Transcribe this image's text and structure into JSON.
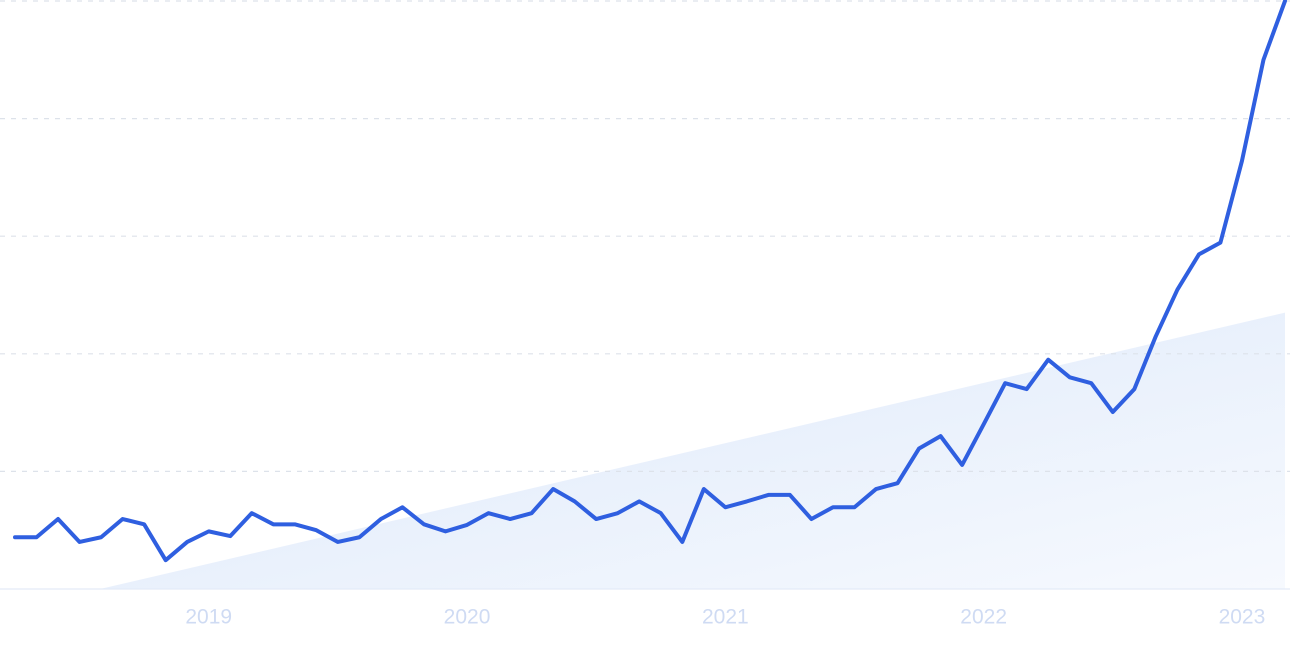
{
  "chart_data": {
    "type": "line",
    "categories": [
      null,
      null,
      null,
      null,
      null,
      null,
      null,
      null,
      null,
      "2019",
      null,
      null,
      null,
      null,
      null,
      null,
      null,
      null,
      null,
      null,
      null,
      "2020",
      null,
      null,
      null,
      null,
      null,
      null,
      null,
      null,
      null,
      null,
      null,
      "2021",
      null,
      null,
      null,
      null,
      null,
      null,
      null,
      null,
      null,
      null,
      null,
      "2022",
      null,
      null,
      null,
      null,
      null,
      null,
      null,
      null,
      null,
      null,
      null,
      "2023",
      null,
      null
    ],
    "series": [
      {
        "color": "#2f5fe0",
        "values": [
          8.8,
          8.8,
          11.9,
          8.0,
          8.8,
          11.9,
          11.0,
          4.9,
          8.0,
          9.8,
          9.0,
          12.9,
          11.0,
          11.0,
          10.0,
          8.0,
          8.8,
          11.9,
          13.9,
          11.0,
          9.8,
          10.9,
          12.9,
          11.9,
          12.9,
          17.0,
          14.9,
          11.9,
          12.9,
          14.9,
          12.9,
          8.0,
          17.0,
          13.9,
          14.9,
          16.0,
          16.0,
          11.9,
          13.9,
          13.9,
          17.0,
          18.0,
          23.9,
          26.0,
          21.1,
          28.0,
          35.0,
          34.0,
          39.0,
          36.0,
          35.0,
          30.1,
          34.0,
          43.0,
          50.9,
          56.9,
          58.9,
          72.8,
          90.0,
          100
        ]
      }
    ],
    "trend": {
      "color": "#e3edfb",
      "x": [
        3.95,
        59
      ],
      "values": [
        0,
        47
      ]
    },
    "ylim": [
      0,
      100
    ],
    "yticks": [
      0,
      20,
      40,
      60,
      80,
      100
    ],
    "grid": true
  }
}
